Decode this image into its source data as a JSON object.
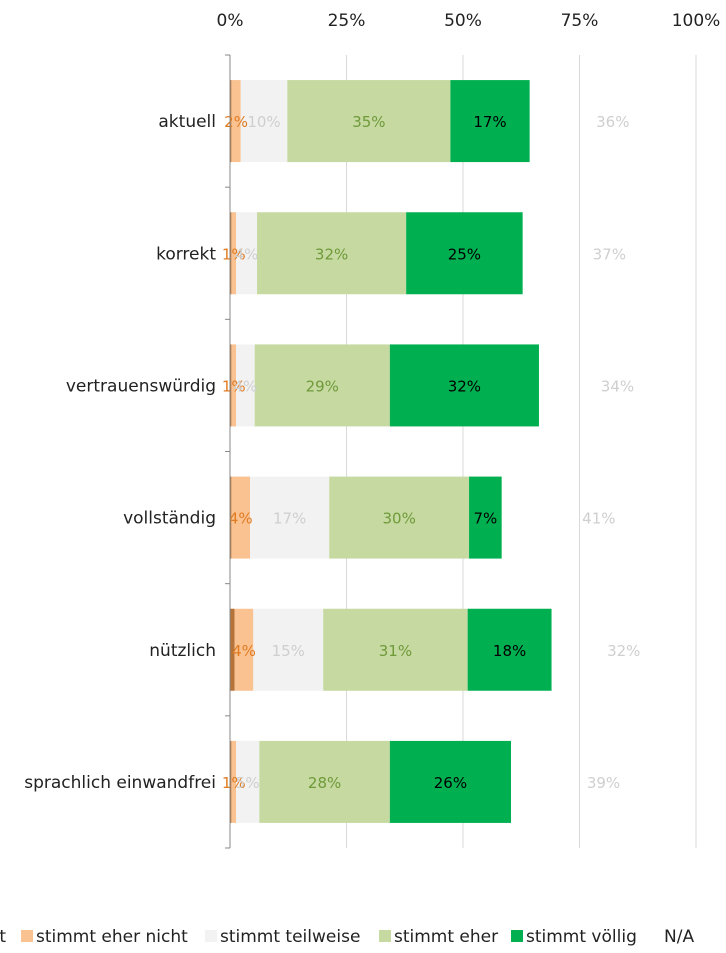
{
  "chart_data": {
    "type": "bar",
    "orientation": "horizontal",
    "stacked": true,
    "x_axis_position": "top",
    "x_ticks": [
      "0%",
      "25%",
      "50%",
      "75%",
      "100%"
    ],
    "xlim": [
      0,
      100
    ],
    "grid": true,
    "legend_position": "bottom",
    "categories": [
      "aktuell",
      "korrekt",
      "vertrauenswürdig",
      "vollständig",
      "nützlich",
      "sprachlich einwandfrei"
    ],
    "series": [
      {
        "name": "…nt",
        "color": "#b5733a",
        "label_color": "#b5733a",
        "values": [
          0.3,
          0.3,
          0.3,
          0.3,
          1.0,
          0.3
        ],
        "labels": [
          "",
          "",
          "",
          "",
          "",
          ""
        ]
      },
      {
        "name": "stimmt eher nicht",
        "color": "#fac191",
        "label_color": "#e07b22",
        "values": [
          2,
          1,
          1,
          4,
          4,
          1
        ],
        "labels": [
          "2%",
          "1%",
          "1%",
          "4%",
          "4%",
          "1%"
        ]
      },
      {
        "name": "stimmt teilweise",
        "color": "#f2f2f2",
        "label_color": "#cfcfcf",
        "values": [
          10,
          4.5,
          4,
          17,
          15,
          5
        ],
        "labels": [
          "10%",
          "4%",
          "4%",
          "17%",
          "15%",
          "5%"
        ]
      },
      {
        "name": "stimmt eher",
        "color": "#c5d9a0",
        "label_color": "#6f9a3a",
        "values": [
          35,
          32,
          29,
          30,
          31,
          28
        ],
        "labels": [
          "35%",
          "32%",
          "29%",
          "30%",
          "31%",
          "28%"
        ]
      },
      {
        "name": "stimmt völlig",
        "color": "#00b050",
        "label_color": "#000000",
        "values": [
          17,
          25,
          32,
          7,
          18,
          26
        ],
        "labels": [
          "17%",
          "25%",
          "32%",
          "7%",
          "18%",
          "26%"
        ]
      },
      {
        "name": "N/A",
        "color": "none",
        "label_color": "#cfcfcf",
        "values": [
          36,
          37,
          34,
          41,
          32,
          39
        ],
        "labels": [
          "36%",
          "37%",
          "34%",
          "41%",
          "32%",
          "39%"
        ]
      }
    ]
  }
}
